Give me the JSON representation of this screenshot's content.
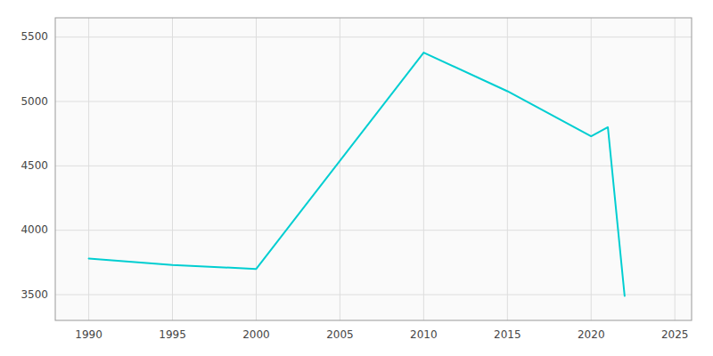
{
  "chart_data": {
    "type": "line",
    "x": [
      1990,
      1995,
      2000,
      2010,
      2015,
      2020,
      2021,
      2022
    ],
    "values": [
      3780,
      3730,
      3700,
      5380,
      5080,
      4730,
      4800,
      3490
    ],
    "color": "#00CED1",
    "xlim": [
      1988,
      2026
    ],
    "ylim": [
      3300,
      5650
    ],
    "xticks": [
      1990,
      1995,
      2000,
      2005,
      2010,
      2015,
      2020,
      2025
    ],
    "yticks": [
      3500,
      4000,
      4500,
      5000,
      5500
    ],
    "grid": true
  }
}
